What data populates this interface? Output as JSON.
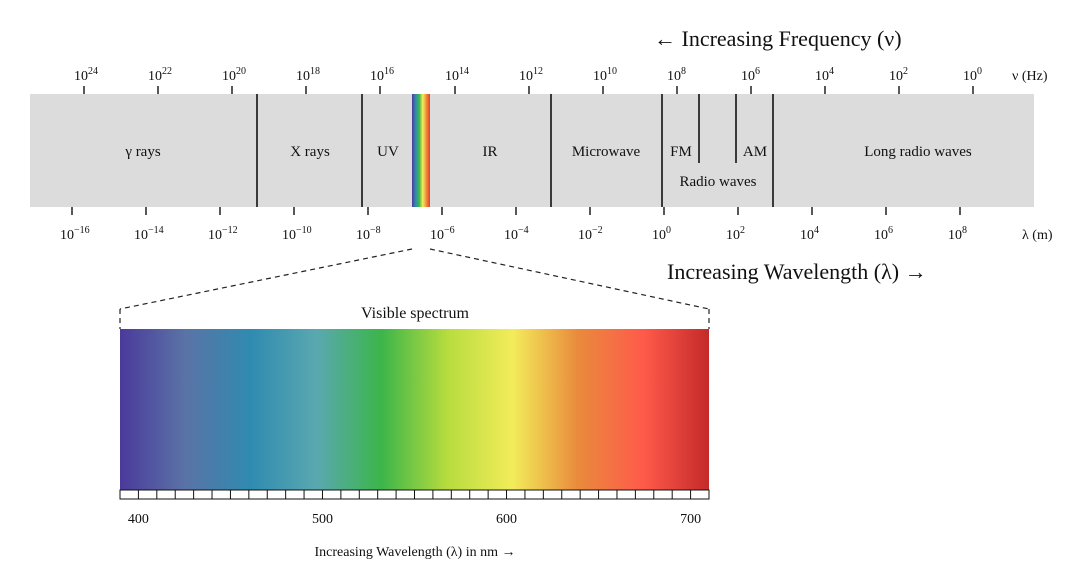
{
  "frequency_heading": "← Increasing Frequency (ν)",
  "wavelength_heading": "Increasing Wavelength (λ) →",
  "frequency_unit": "ν (Hz)",
  "wavelength_unit": "λ (m)",
  "frequency_ticks": [
    {
      "base": "10",
      "exp": "24"
    },
    {
      "base": "10",
      "exp": "22"
    },
    {
      "base": "10",
      "exp": "20"
    },
    {
      "base": "10",
      "exp": "18"
    },
    {
      "base": "10",
      "exp": "16"
    },
    {
      "base": "10",
      "exp": "14"
    },
    {
      "base": "10",
      "exp": "12"
    },
    {
      "base": "10",
      "exp": "10"
    },
    {
      "base": "10",
      "exp": "8"
    },
    {
      "base": "10",
      "exp": "6"
    },
    {
      "base": "10",
      "exp": "4"
    },
    {
      "base": "10",
      "exp": "2"
    },
    {
      "base": "10",
      "exp": "0"
    }
  ],
  "wavelength_ticks": [
    {
      "base": "10",
      "exp": "−16"
    },
    {
      "base": "10",
      "exp": "−14"
    },
    {
      "base": "10",
      "exp": "−12"
    },
    {
      "base": "10",
      "exp": "−10"
    },
    {
      "base": "10",
      "exp": "−8"
    },
    {
      "base": "10",
      "exp": "−6"
    },
    {
      "base": "10",
      "exp": "−4"
    },
    {
      "base": "10",
      "exp": "−2"
    },
    {
      "base": "10",
      "exp": "0"
    },
    {
      "base": "10",
      "exp": "2"
    },
    {
      "base": "10",
      "exp": "4"
    },
    {
      "base": "10",
      "exp": "6"
    },
    {
      "base": "10",
      "exp": "8"
    }
  ],
  "bands": {
    "gamma": "γ rays",
    "xray": "X rays",
    "uv": "UV",
    "ir": "IR",
    "microwave": "Microwave",
    "fm": "FM",
    "am": "AM",
    "radio": "Radio waves",
    "long_radio": "Long radio waves"
  },
  "visible_spectrum": {
    "title": "Visible spectrum",
    "axis_label": "Increasing Wavelength (λ) in nm →",
    "tick_labels": [
      "400",
      "500",
      "600",
      "700"
    ],
    "range_nm": [
      390,
      710
    ],
    "gradient_colors": [
      "#4a3a9b",
      "#5a73a6",
      "#2f8bb0",
      "#5aa8b0",
      "#3cb54a",
      "#b7dc3e",
      "#f3ec5a",
      "#e98a3c",
      "#ff5a4a",
      "#c42a2a"
    ]
  }
}
